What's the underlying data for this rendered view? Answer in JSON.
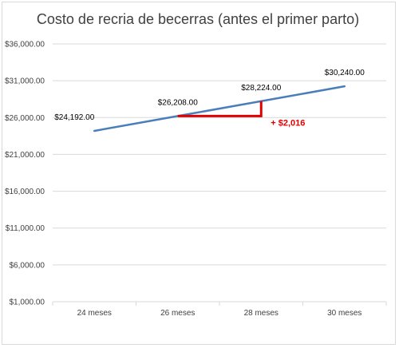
{
  "chart_data": {
    "type": "line",
    "title": "Costo de recria de becerras (antes el primer parto)",
    "categories": [
      "24 meses",
      "26 meses",
      "28 meses",
      "30 meses"
    ],
    "series": [
      {
        "values": [
          24192,
          26208,
          28224,
          30240
        ],
        "data_labels": [
          "$24,192.00",
          "$26,208.00",
          "$28,224.00",
          "$30,240.00"
        ]
      }
    ],
    "ylim": [
      1000,
      36000
    ],
    "yticks": [
      1000,
      6000,
      11000,
      16000,
      21000,
      26000,
      31000,
      36000
    ],
    "ytick_labels": [
      "$1,000.00",
      "$6,000.00",
      "$11,000.00",
      "$16,000.00",
      "$21,000.00",
      "$26,000.00",
      "$31,000.00",
      "$36,000.00"
    ],
    "grid": true,
    "legend": "none",
    "annotation": {
      "text": "+ $2,016",
      "from_category": "26 meses",
      "to_category": "28 meses",
      "color": "#e00000"
    }
  },
  "colors": {
    "series_line": "#4a7ebb",
    "grid": "#d9d9d9",
    "annotation": "#e00000"
  }
}
